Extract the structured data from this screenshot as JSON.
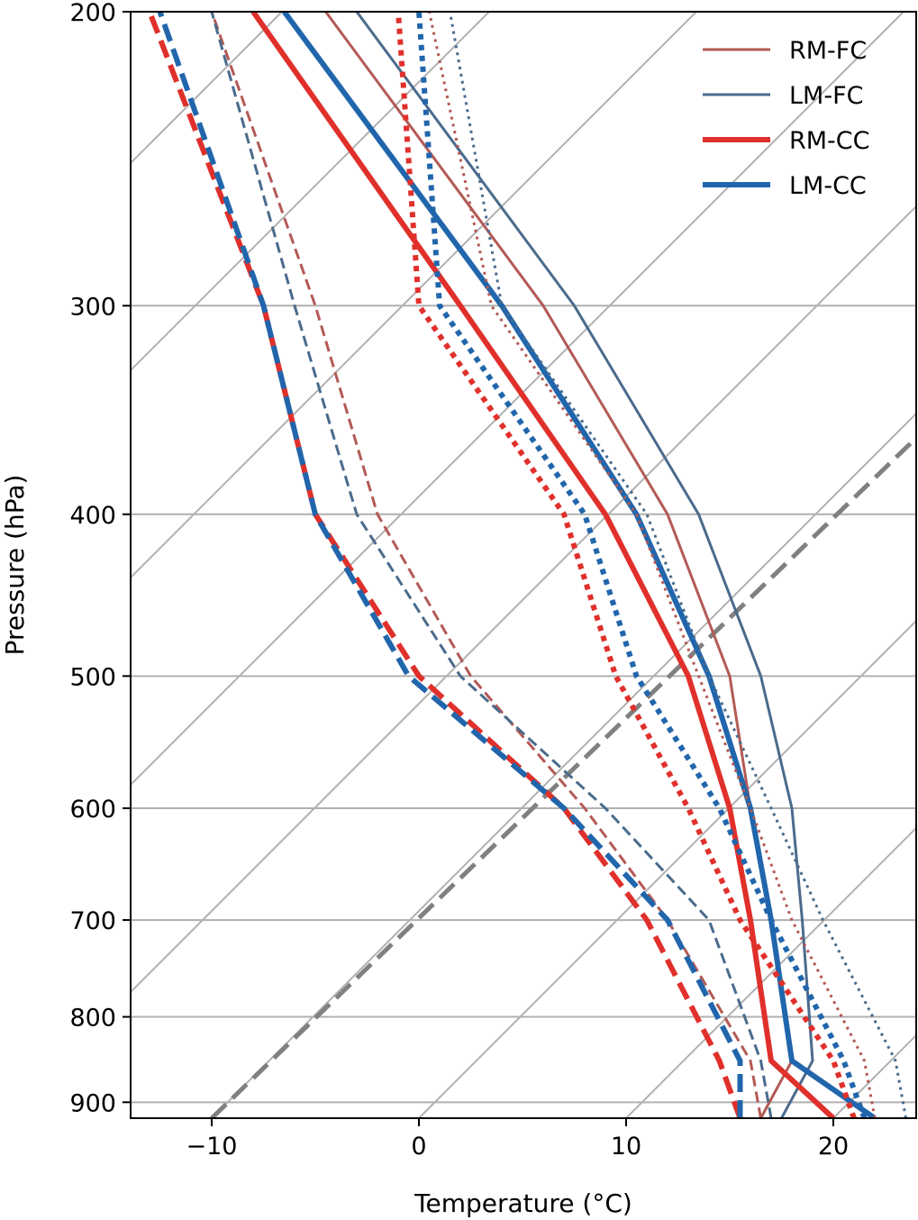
{
  "chart_data": {
    "type": "line",
    "title": "",
    "xlabel": "Temperature (°C)",
    "ylabel": "Pressure (hPa)",
    "y_scale": "log",
    "y_inverted": true,
    "xlim": [
      -14,
      24
    ],
    "ylim": [
      920,
      200
    ],
    "x_ticks": [
      -10,
      0,
      10,
      20
    ],
    "x_tick_labels": [
      "−10",
      "0",
      "10",
      "20"
    ],
    "y_ticks": [
      200,
      300,
      400,
      500,
      600,
      700,
      800,
      900
    ],
    "y_tick_labels": [
      "200",
      "300",
      "400",
      "500",
      "600",
      "700",
      "800",
      "900"
    ],
    "grid": true,
    "skew_isotherm_spacing": 10,
    "reference_line": {
      "style": "dashed",
      "color": "#808080",
      "pressure": [
        920,
        360
      ],
      "temperature": [
        -10,
        24
      ]
    },
    "legend": {
      "position": "top-right",
      "entries": [
        {
          "label": "RM-FC",
          "color": "#b35a56",
          "width": 3
        },
        {
          "label": "LM-FC",
          "color": "#4a6b8c",
          "width": 3
        },
        {
          "label": "RM-CC",
          "color": "#e0302b",
          "width": 6
        },
        {
          "label": "LM-CC",
          "color": "#2166ac",
          "width": 6
        }
      ]
    },
    "series": [
      {
        "name": "RM-FC",
        "color": "#b35a56",
        "width": 3,
        "dash": "solid",
        "pressure": [
          920,
          850,
          700,
          600,
          500,
          400,
          300,
          200
        ],
        "temperature": [
          16.5,
          18,
          17,
          16,
          15,
          12,
          6,
          -4.5
        ]
      },
      {
        "name": "LM-FC",
        "color": "#4a6b8c",
        "width": 3,
        "dash": "solid",
        "pressure": [
          920,
          850,
          700,
          600,
          500,
          400,
          300,
          200
        ],
        "temperature": [
          17.5,
          19,
          18.5,
          18,
          16.5,
          13.5,
          7.5,
          -3
        ]
      },
      {
        "name": "RM-CC",
        "color": "#e0302b",
        "width": 6,
        "dash": "solid",
        "pressure": [
          920,
          850,
          700,
          600,
          500,
          400,
          300,
          200
        ],
        "temperature": [
          20,
          17,
          16,
          15,
          13,
          9,
          2,
          -8
        ]
      },
      {
        "name": "LM-CC",
        "color": "#2166ac",
        "width": 6,
        "dash": "solid",
        "pressure": [
          920,
          850,
          700,
          600,
          500,
          400,
          300,
          200
        ],
        "temperature": [
          22,
          18,
          17,
          16,
          14,
          10.5,
          4,
          -6.5
        ]
      },
      {
        "color": "#b35a56",
        "width": 3,
        "dash": "dashed",
        "pressure": [
          920,
          850,
          700,
          600,
          500,
          400,
          300,
          200
        ],
        "temperature": [
          16.5,
          16,
          12,
          8,
          2.5,
          -2,
          -5,
          -10
        ]
      },
      {
        "color": "#4a6b8c",
        "width": 3,
        "dash": "dashed",
        "pressure": [
          920,
          850,
          700,
          600,
          500,
          400,
          300,
          200
        ],
        "temperature": [
          17,
          16.5,
          14,
          9,
          2,
          -3,
          -6,
          -10
        ]
      },
      {
        "color": "#e0302b",
        "width": 6,
        "dash": "dashed",
        "pressure": [
          920,
          850,
          700,
          600,
          500,
          400,
          300,
          200
        ],
        "temperature": [
          15.5,
          14.5,
          11,
          7,
          0,
          -5,
          -7.5,
          -13
        ]
      },
      {
        "color": "#2166ac",
        "width": 6,
        "dash": "dashed",
        "pressure": [
          920,
          850,
          700,
          600,
          500,
          400,
          300,
          200
        ],
        "temperature": [
          15.5,
          15.5,
          12,
          7,
          -0.5,
          -5,
          -7.5,
          -12.5
        ]
      },
      {
        "color": "#b35a56",
        "width": 3,
        "dash": "dotted",
        "pressure": [
          920,
          850,
          700,
          600,
          500,
          400,
          300,
          200
        ],
        "temperature": [
          22,
          21.5,
          18,
          16,
          13.5,
          10.5,
          3.5,
          0.5
        ]
      },
      {
        "color": "#4a6b8c",
        "width": 3,
        "dash": "dotted",
        "pressure": [
          920,
          850,
          700,
          600,
          500,
          400,
          300,
          200
        ],
        "temperature": [
          23.5,
          23,
          19.5,
          17,
          14,
          11,
          4,
          1.5
        ]
      },
      {
        "color": "#e0302b",
        "width": 6,
        "dash": "dotted",
        "pressure": [
          920,
          850,
          700,
          600,
          500,
          400,
          300,
          200
        ],
        "temperature": [
          21,
          20,
          15.5,
          13,
          9.5,
          7,
          0,
          -1
        ]
      },
      {
        "color": "#2166ac",
        "width": 6,
        "dash": "dotted",
        "pressure": [
          920,
          850,
          700,
          600,
          500,
          400,
          300,
          200
        ],
        "temperature": [
          21.5,
          20.5,
          17,
          14.5,
          10.5,
          8,
          1,
          0
        ]
      }
    ]
  }
}
